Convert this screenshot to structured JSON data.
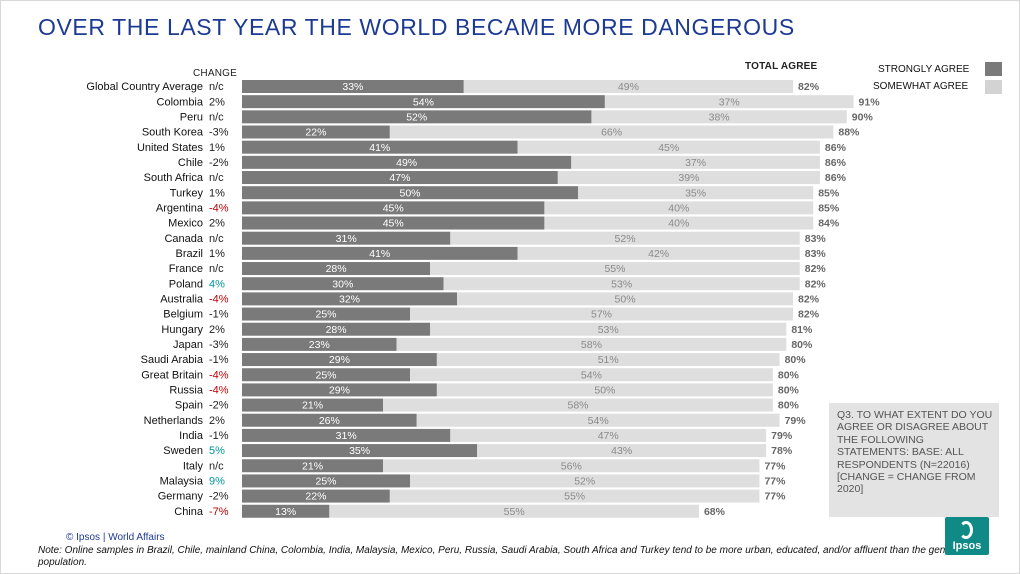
{
  "title": "OVER THE LAST YEAR THE WORLD BECAME MORE DANGEROUS",
  "headers": {
    "change": "CHANGE",
    "total": "TOTAL AGREE"
  },
  "legend": [
    {
      "label": "STRONGLY AGREE",
      "color": "#7a7a7a"
    },
    {
      "label": "SOMEWHAT AGREE",
      "color": "#d3d3d3"
    }
  ],
  "note_box": "Q3. TO WHAT EXTENT DO YOU AGREE OR DISAGREE ABOUT THE FOLLOWING STATEMENTS: BASE: ALL RESPONDENTS (N=22016) [CHANGE = CHANGE FROM 2020]",
  "copyright": "© Ipsos | World Affairs",
  "footnote": "Note: Online samples in Brazil, Chile, mainland China, Colombia, India, Malaysia, Mexico, Peru, Russia, Saudi Arabia, South Africa and Turkey tend to be more urban, educated, and/or affluent than the general population.",
  "logo_text": "Ipsos",
  "colors": {
    "strong": "#7a7a7a",
    "somewhat": "#dedede",
    "negative": "#c00000",
    "positive": "#00969a",
    "neutral": "#222222",
    "title": "#1d3a93"
  },
  "chart_data": {
    "type": "bar",
    "orientation": "horizontal-stacked",
    "categories": [
      "Global Country Average",
      "Colombia",
      "Peru",
      "South Korea",
      "United States",
      "Chile",
      "South Africa",
      "Turkey",
      "Argentina",
      "Mexico",
      "Canada",
      "Brazil",
      "France",
      "Poland",
      "Australia",
      "Belgium",
      "Hungary",
      "Japan",
      "Saudi Arabia",
      "Great Britain",
      "Russia",
      "Spain",
      "Netherlands",
      "India",
      "Sweden",
      "Italy",
      "Malaysia",
      "Germany",
      "China"
    ],
    "series": [
      {
        "name": "STRONGLY AGREE",
        "values": [
          33,
          54,
          52,
          22,
          41,
          49,
          47,
          50,
          45,
          45,
          31,
          41,
          28,
          30,
          32,
          25,
          28,
          23,
          29,
          25,
          29,
          21,
          26,
          31,
          35,
          21,
          25,
          22,
          13
        ]
      },
      {
        "name": "SOMEWHAT AGREE",
        "values": [
          49,
          37,
          38,
          66,
          45,
          37,
          39,
          35,
          40,
          40,
          52,
          42,
          55,
          53,
          50,
          57,
          53,
          58,
          51,
          54,
          50,
          58,
          54,
          47,
          43,
          56,
          52,
          55,
          55
        ]
      }
    ],
    "total_agree": [
      82,
      91,
      90,
      88,
      86,
      86,
      86,
      85,
      85,
      84,
      83,
      83,
      82,
      82,
      82,
      82,
      81,
      80,
      80,
      80,
      80,
      80,
      79,
      79,
      78,
      77,
      77,
      77,
      68
    ],
    "change": [
      "n/c",
      "2%",
      "n/c",
      "-3%",
      "1%",
      "-2%",
      "n/c",
      "1%",
      "-4%",
      "2%",
      "n/c",
      "1%",
      "n/c",
      "4%",
      "-4%",
      "-1%",
      "2%",
      "-3%",
      "-1%",
      "-4%",
      "-4%",
      "-2%",
      "2%",
      "-1%",
      "5%",
      "n/c",
      "9%",
      "-2%",
      "-7%"
    ],
    "change_highlight": [
      "none",
      "none",
      "none",
      "none",
      "none",
      "none",
      "none",
      "none",
      "negative",
      "none",
      "none",
      "none",
      "none",
      "positive",
      "negative",
      "none",
      "none",
      "none",
      "none",
      "negative",
      "negative",
      "none",
      "none",
      "none",
      "positive",
      "none",
      "positive",
      "none",
      "negative"
    ],
    "xlim": [
      0,
      100
    ],
    "grid": false,
    "legend_position": "top-right"
  }
}
